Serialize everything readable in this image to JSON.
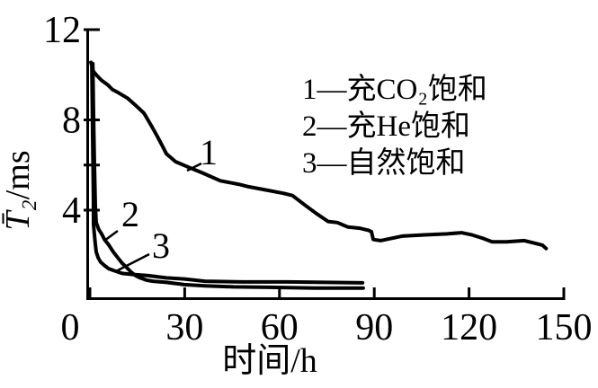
{
  "figure": {
    "background_color": "#ffffff",
    "ink_color": "#000000"
  },
  "axis_labels": {
    "x": "时间/h",
    "y_symbol": "T̄₂",
    "y_unit": "/ms"
  },
  "ticks": {
    "x": [
      {
        "value": 0,
        "label": "0"
      },
      {
        "value": 30,
        "label": "30"
      },
      {
        "value": 60,
        "label": "60"
      },
      {
        "value": 90,
        "label": "90"
      },
      {
        "value": 120,
        "label": "120"
      },
      {
        "value": 150,
        "label": "150"
      }
    ],
    "y_major": [
      {
        "value": 12,
        "label": "12"
      },
      {
        "value": 8,
        "label": "8"
      },
      {
        "value": 4,
        "label": "4"
      }
    ],
    "y_minor": [
      {
        "value": 6
      }
    ]
  },
  "chart_data": {
    "type": "line",
    "title": "",
    "xlabel": "时间/h",
    "ylabel": "T̄₂/ms",
    "xlim": [
      0,
      150
    ],
    "ylim": [
      0,
      12
    ],
    "xticks": [
      0,
      30,
      60,
      90,
      120,
      150
    ],
    "yticks_labeled": [
      12,
      8,
      4
    ],
    "yticks_minor": [
      6
    ],
    "grid": false,
    "legend_position": "inside upper right",
    "series": [
      {
        "curve_label": "1",
        "name": "1—充CO₂饱和",
        "points": [
          [
            0.3,
            10.55
          ],
          [
            0.8,
            10.3
          ],
          [
            1.1,
            10.15
          ],
          [
            2.3,
            9.95
          ],
          [
            3.7,
            9.75
          ],
          [
            5.7,
            9.55
          ],
          [
            7.1,
            9.35
          ],
          [
            9.1,
            9.2
          ],
          [
            12.0,
            8.95
          ],
          [
            14.8,
            8.6
          ],
          [
            17.1,
            8.3
          ],
          [
            19.4,
            7.75
          ],
          [
            21.4,
            7.25
          ],
          [
            23.1,
            6.8
          ],
          [
            24.2,
            6.5
          ],
          [
            27.1,
            6.15
          ],
          [
            31.3,
            5.9
          ],
          [
            35.6,
            5.65
          ],
          [
            41.3,
            5.3
          ],
          [
            47.0,
            5.15
          ],
          [
            49.8,
            5.05
          ],
          [
            55.5,
            4.9
          ],
          [
            61.2,
            4.75
          ],
          [
            64.1,
            4.65
          ],
          [
            67.8,
            4.25
          ],
          [
            71.7,
            3.85
          ],
          [
            75.4,
            3.5
          ],
          [
            78.3,
            3.45
          ],
          [
            81.7,
            3.25
          ],
          [
            85.4,
            3.2
          ],
          [
            88.3,
            3.1
          ],
          [
            89.1,
            3.05
          ],
          [
            89.7,
            2.7
          ],
          [
            92.0,
            2.65
          ],
          [
            98.8,
            2.85
          ],
          [
            105.3,
            2.9
          ],
          [
            113.0,
            2.95
          ],
          [
            117.6,
            3.0
          ],
          [
            121.0,
            2.9
          ],
          [
            124.4,
            2.75
          ],
          [
            127.3,
            2.6
          ],
          [
            131.8,
            2.6
          ],
          [
            137.5,
            2.65
          ],
          [
            140.4,
            2.55
          ],
          [
            143.2,
            2.45
          ],
          [
            144.4,
            2.3
          ]
        ]
      },
      {
        "curve_label": "2",
        "name": "2—充He饱和",
        "points": [
          [
            0.9,
            10.5
          ],
          [
            1.1,
            8.5
          ],
          [
            1.4,
            6.2
          ],
          [
            1.7,
            4.2
          ],
          [
            2.0,
            3.45
          ],
          [
            2.8,
            3.15
          ],
          [
            3.7,
            2.95
          ],
          [
            4.6,
            2.7
          ],
          [
            6.0,
            2.45
          ],
          [
            7.4,
            2.15
          ],
          [
            8.8,
            1.9
          ],
          [
            10.2,
            1.65
          ],
          [
            11.7,
            1.45
          ],
          [
            13.1,
            1.25
          ],
          [
            14.5,
            1.1
          ],
          [
            15.9,
            1.0
          ],
          [
            17.9,
            0.9
          ],
          [
            19.9,
            0.85
          ],
          [
            24.2,
            0.8
          ],
          [
            29.9,
            0.7
          ],
          [
            36.4,
            0.65
          ],
          [
            45.5,
            0.6
          ],
          [
            56.9,
            0.58
          ],
          [
            71.2,
            0.55
          ],
          [
            86.5,
            0.55
          ]
        ]
      },
      {
        "curve_label": "3",
        "name": "3—自然饱和",
        "points": [
          [
            0.6,
            10.5
          ],
          [
            0.85,
            7.35
          ],
          [
            1.1,
            4.55
          ],
          [
            1.15,
            3.35
          ],
          [
            1.4,
            2.95
          ],
          [
            1.7,
            2.5
          ],
          [
            2.0,
            2.15
          ],
          [
            2.6,
            1.9
          ],
          [
            3.4,
            1.7
          ],
          [
            4.6,
            1.55
          ],
          [
            6.0,
            1.4
          ],
          [
            8.0,
            1.3
          ],
          [
            10.2,
            1.2
          ],
          [
            13.7,
            1.15
          ],
          [
            18.5,
            1.1
          ],
          [
            24.2,
            1.0
          ],
          [
            29.9,
            0.95
          ],
          [
            36.4,
            0.85
          ],
          [
            48.4,
            0.82
          ],
          [
            62.6,
            0.82
          ],
          [
            86.3,
            0.78
          ]
        ]
      }
    ]
  },
  "legend": {
    "items": [
      {
        "label": "1—充CO₂饱和"
      },
      {
        "label": "2—充He饱和"
      },
      {
        "label": "3—自然饱和"
      }
    ]
  },
  "curve_labels": [
    {
      "text": "1"
    },
    {
      "text": "2"
    },
    {
      "text": "3"
    }
  ]
}
